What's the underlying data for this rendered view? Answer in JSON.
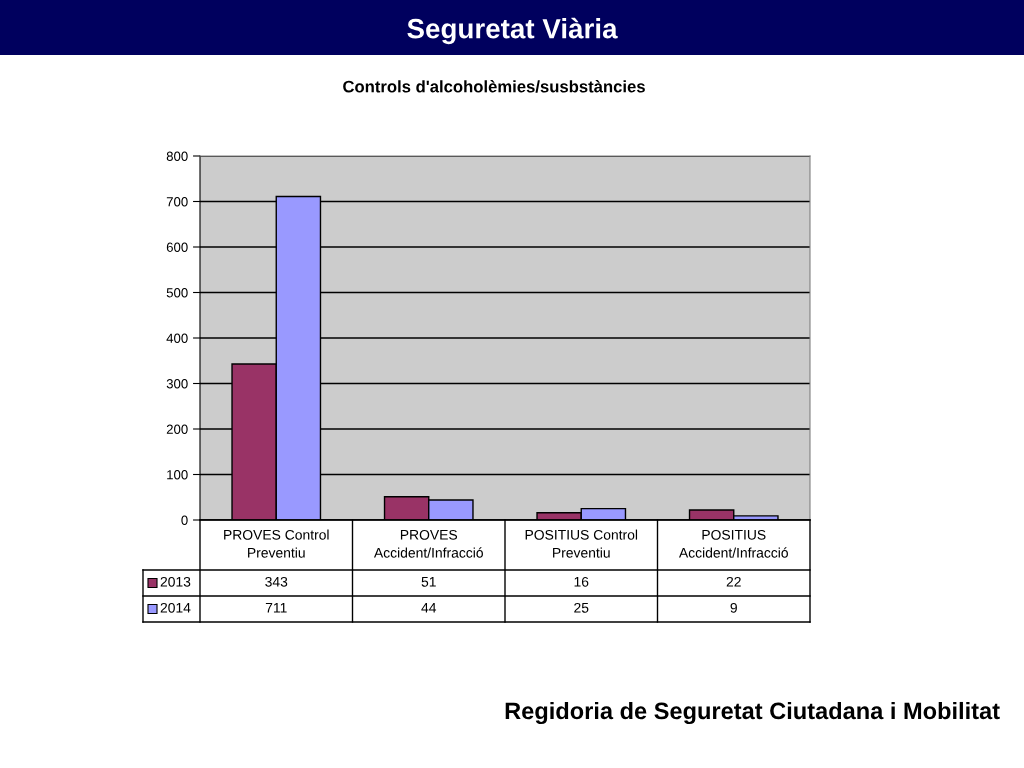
{
  "chart_data": {
    "type": "bar",
    "title": "Seguretat Viària",
    "subtitle": "Controls d'alcoholèmies/susbstàncies",
    "annotations": [
      "Regidoria de Seguretat Ciutadana i Mobilitat"
    ],
    "categories": [
      "PROVES Control\nPreventiu",
      "PROVES\nAccident/Infracció",
      "POSITIUS Control\nPreventiu",
      "POSITIUS\nAccident/Infracció"
    ],
    "series": [
      {
        "name": "2013",
        "color": "#993366",
        "values": [
          343,
          51,
          16,
          22
        ]
      },
      {
        "name": "2014",
        "color": "#9999ff",
        "values": [
          711,
          44,
          25,
          9
        ]
      }
    ],
    "ylim": [
      0,
      800
    ],
    "yticks": [
      0,
      100,
      200,
      300,
      400,
      500,
      600,
      700,
      800
    ],
    "grid": "y",
    "legend": "bottom",
    "data_labels": true
  }
}
